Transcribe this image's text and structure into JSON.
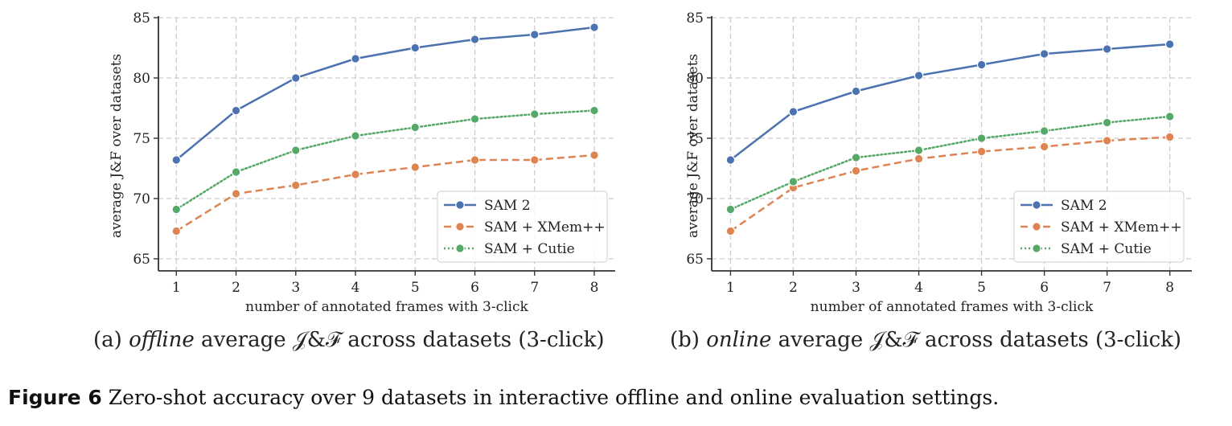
{
  "figure": {
    "label": "Figure 6",
    "caption": "Zero-shot accuracy over 9 datasets in interactive offline and online evaluation settings."
  },
  "subcaptions": [
    {
      "prefix": "(a) ",
      "italic": "offline",
      "rest": " average 𝒥&ℱ across datasets (3-click)"
    },
    {
      "prefix": "(b) ",
      "italic": "online",
      "rest": " average 𝒥&ℱ across datasets (3-click)"
    }
  ],
  "colors": {
    "sam2": "#4c72b0",
    "xmem": "#dd8452",
    "cutie": "#55a868",
    "grid": "#cccccc",
    "axis": "#333333"
  },
  "chart_data": [
    {
      "type": "line",
      "xlabel": "number of annotated frames with 3-click",
      "ylabel": "average J&F over datasets",
      "x": [
        1,
        2,
        3,
        4,
        5,
        6,
        7,
        8
      ],
      "xlim": [
        0.7,
        8.35
      ],
      "ylim": [
        64,
        85
      ],
      "yticks": [
        65,
        70,
        75,
        80,
        85
      ],
      "grid": true,
      "legend_position": "lower-right",
      "series": [
        {
          "name": "SAM 2",
          "style": "solid",
          "values": [
            73.2,
            77.3,
            80.0,
            81.6,
            82.5,
            83.2,
            83.6,
            84.2
          ]
        },
        {
          "name": "SAM + XMem++",
          "style": "dashed",
          "values": [
            67.3,
            70.4,
            71.1,
            72.0,
            72.6,
            73.2,
            73.2,
            73.6
          ]
        },
        {
          "name": "SAM + Cutie",
          "style": "dotted",
          "values": [
            69.1,
            72.2,
            74.0,
            75.2,
            75.9,
            76.6,
            77.0,
            77.3
          ]
        }
      ]
    },
    {
      "type": "line",
      "xlabel": "number of annotated frames with 3-click",
      "ylabel": "average J&F over datasets",
      "x": [
        1,
        2,
        3,
        4,
        5,
        6,
        7,
        8
      ],
      "xlim": [
        0.7,
        8.35
      ],
      "ylim": [
        64,
        85
      ],
      "yticks": [
        65,
        70,
        75,
        80,
        85
      ],
      "grid": true,
      "legend_position": "lower-right",
      "series": [
        {
          "name": "SAM 2",
          "style": "solid",
          "values": [
            73.2,
            77.2,
            78.9,
            80.2,
            81.1,
            82.0,
            82.4,
            82.8
          ]
        },
        {
          "name": "SAM + XMem++",
          "style": "dashed",
          "values": [
            67.3,
            70.9,
            72.3,
            73.3,
            73.9,
            74.3,
            74.8,
            75.1
          ]
        },
        {
          "name": "SAM + Cutie",
          "style": "dotted",
          "values": [
            69.1,
            71.4,
            73.4,
            74.0,
            75.0,
            75.6,
            76.3,
            76.8
          ]
        }
      ]
    }
  ]
}
